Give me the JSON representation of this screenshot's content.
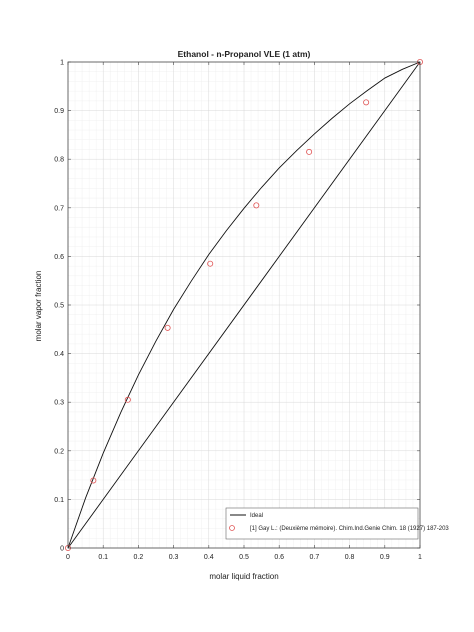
{
  "chart_data": {
    "type": "line",
    "title": "Ethanol - n-Propanol VLE (1 atm)",
    "xlabel": "molar liquid fraction",
    "ylabel": "molar vapor fraction",
    "xlim": [
      0,
      1
    ],
    "ylim": [
      0,
      1
    ],
    "x_ticks": [
      "0",
      "0.1",
      "0.2",
      "0.3",
      "0.4",
      "0.5",
      "0.6",
      "0.7",
      "0.8",
      "0.9",
      "1"
    ],
    "y_ticks": [
      "0",
      "0.1",
      "0.2",
      "0.3",
      "0.4",
      "0.5",
      "0.6",
      "0.7",
      "0.8",
      "0.9",
      "1"
    ],
    "grid": true,
    "minor_grid": true,
    "legend_position": "bottom-right",
    "series": [
      {
        "name": "Ideal",
        "type": "line",
        "color": "#111111",
        "x": [
          0,
          0.05,
          0.1,
          0.15,
          0.2,
          0.25,
          0.3,
          0.35,
          0.4,
          0.45,
          0.5,
          0.55,
          0.6,
          0.65,
          0.7,
          0.75,
          0.8,
          0.85,
          0.9,
          0.95,
          1
        ],
        "y": [
          0,
          0.103,
          0.195,
          0.279,
          0.356,
          0.426,
          0.491,
          0.549,
          0.604,
          0.653,
          0.699,
          0.742,
          0.782,
          0.818,
          0.852,
          0.884,
          0.914,
          0.941,
          0.967,
          0.985,
          1
        ]
      },
      {
        "name": "[1] Gay L.: (Deuxième mémoire). Chim.Ind.Genie Chim. 18 (1927) 187-203",
        "type": "scatter",
        "color": "#e05555",
        "marker": "circle",
        "x": [
          0,
          0.072,
          0.17,
          0.283,
          0.404,
          0.535,
          0.685,
          0.847,
          1
        ],
        "y": [
          0,
          0.139,
          0.305,
          0.453,
          0.585,
          0.705,
          0.815,
          0.917,
          1
        ]
      }
    ],
    "diagonal": {
      "color": "#111111",
      "x": [
        0,
        1
      ],
      "y": [
        0,
        1
      ]
    }
  }
}
